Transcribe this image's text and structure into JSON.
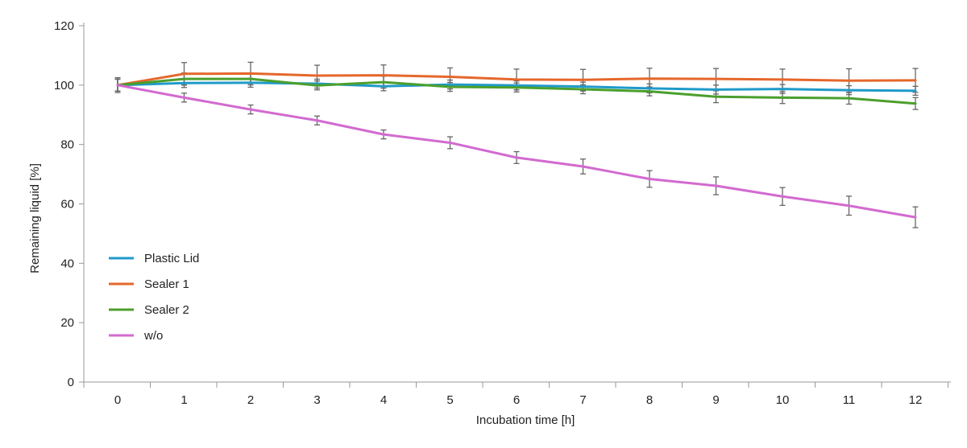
{
  "chart_data": {
    "type": "line",
    "xlabel": "Incubation time [h]",
    "ylabel": "Remaining liquid [%]",
    "x": [
      0,
      1,
      2,
      3,
      4,
      5,
      6,
      7,
      8,
      9,
      10,
      11,
      12
    ],
    "xticks": [
      "0",
      "1",
      "2",
      "3",
      "4",
      "5",
      "6",
      "7",
      "8",
      "9",
      "10",
      "11",
      "12"
    ],
    "yticks": [
      "0",
      "20",
      "40",
      "60",
      "80",
      "100",
      "120"
    ],
    "ylim": [
      0,
      120
    ],
    "grid": false,
    "legend_position": "left",
    "series": [
      {
        "name": "Plastic Lid",
        "color": "#1f9ac9",
        "values": [
          100,
          100.7,
          100.8,
          100.5,
          99.6,
          100.2,
          99.9,
          99.5,
          98.9,
          98.5,
          98.7,
          98.3,
          98.1
        ],
        "errors": [
          2.0,
          1.5,
          1.5,
          1.5,
          1.5,
          1.5,
          1.5,
          1.5,
          1.5,
          1.5,
          1.5,
          1.5,
          1.5
        ]
      },
      {
        "name": "Sealer 1",
        "color": "#e5672b",
        "values": [
          100,
          103.8,
          103.9,
          103.2,
          103.3,
          102.8,
          101.9,
          101.8,
          102.2,
          102.1,
          101.9,
          101.5,
          101.6
        ],
        "errors": [
          2.0,
          3.8,
          3.8,
          3.5,
          3.5,
          3.0,
          3.5,
          3.5,
          3.5,
          3.5,
          3.5,
          4.0,
          4.0
        ]
      },
      {
        "name": "Sealer 2",
        "color": "#4b9f2c",
        "values": [
          100,
          102.1,
          102.1,
          99.9,
          101.0,
          99.4,
          99.2,
          98.6,
          97.9,
          96.1,
          95.8,
          95.6,
          93.8
        ],
        "errors": [
          2.0,
          2.0,
          2.0,
          1.5,
          2.0,
          1.5,
          1.5,
          1.5,
          1.5,
          2.0,
          2.0,
          2.0,
          2.0
        ]
      },
      {
        "name": "w/o",
        "color": "#d26ad0",
        "values": [
          100,
          95.8,
          91.8,
          88.1,
          83.4,
          80.6,
          75.6,
          72.6,
          68.4,
          66.1,
          62.5,
          59.4,
          55.5
        ],
        "errors": [
          2.5,
          1.5,
          1.5,
          1.5,
          1.5,
          2.0,
          2.0,
          2.5,
          2.8,
          3.0,
          3.0,
          3.2,
          3.5
        ]
      }
    ]
  }
}
